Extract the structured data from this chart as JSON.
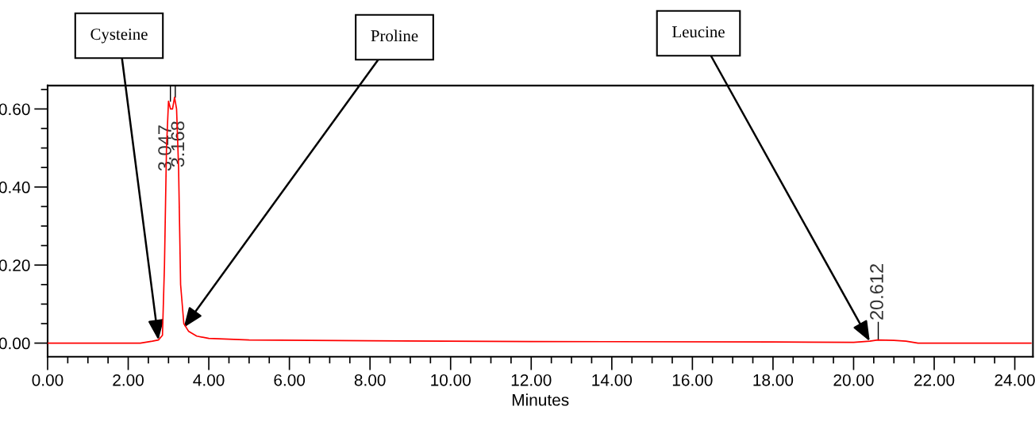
{
  "chart_data": {
    "type": "line",
    "xlabel": "Minutes",
    "x": [
      0,
      2.3,
      2.6,
      2.75,
      2.85,
      2.9,
      2.95,
      3.0,
      3.05,
      3.1,
      3.15,
      3.2,
      3.25,
      3.3,
      3.38,
      3.5,
      3.7,
      4.0,
      5.0,
      8.0,
      12.0,
      18.0,
      20.0,
      20.4,
      20.6,
      21.0,
      21.3,
      21.6,
      24.4
    ],
    "series": [
      {
        "color": "#ff0000",
        "values": [
          0.0,
          0.0,
          0.005,
          0.008,
          0.02,
          0.2,
          0.5,
          0.62,
          0.6,
          0.6,
          0.63,
          0.6,
          0.45,
          0.15,
          0.05,
          0.03,
          0.018,
          0.012,
          0.008,
          0.006,
          0.004,
          0.003,
          0.002,
          0.005,
          0.008,
          0.007,
          0.005,
          0.0,
          0.0
        ]
      }
    ],
    "xlim": [
      0,
      24.45
    ],
    "ylim": [
      -0.035,
      0.66
    ],
    "xticks": [
      {
        "value": 0,
        "label": "0.00"
      },
      {
        "value": 2,
        "label": "2.00"
      },
      {
        "value": 4,
        "label": "4.00"
      },
      {
        "value": 6,
        "label": "6.00"
      },
      {
        "value": 8,
        "label": "8.00"
      },
      {
        "value": 10,
        "label": "10.00"
      },
      {
        "value": 12,
        "label": "12.00"
      },
      {
        "value": 14,
        "label": "14.00"
      },
      {
        "value": 16,
        "label": "16.00"
      },
      {
        "value": 18,
        "label": "18.00"
      },
      {
        "value": 20,
        "label": "20.00"
      },
      {
        "value": 22,
        "label": "22.00"
      },
      {
        "value": 24,
        "label": "24.00"
      }
    ],
    "yticks": [
      {
        "value": 0,
        "label": "0.00"
      },
      {
        "value": 0.2,
        "label": "0.20"
      },
      {
        "value": 0.4,
        "label": "0.40"
      },
      {
        "value": 0.6,
        "label": "0.60"
      }
    ],
    "grid": false,
    "legend": false,
    "marker": "none",
    "line_style": "solid",
    "annotations": [
      {
        "text": "3.047",
        "x": 3.047,
        "y": 0.62
      },
      {
        "text": "3.168",
        "x": 3.168,
        "y": 0.63
      },
      {
        "text": "20.612",
        "x": 20.612,
        "y": 0.008
      },
      {
        "text": "Cysteine",
        "x": 2.75,
        "y": 0.008
      },
      {
        "text": "Proline",
        "x": 3.38,
        "y": 0.04
      },
      {
        "text": "Leucine",
        "x": 20.4,
        "y": 0.005
      }
    ]
  }
}
